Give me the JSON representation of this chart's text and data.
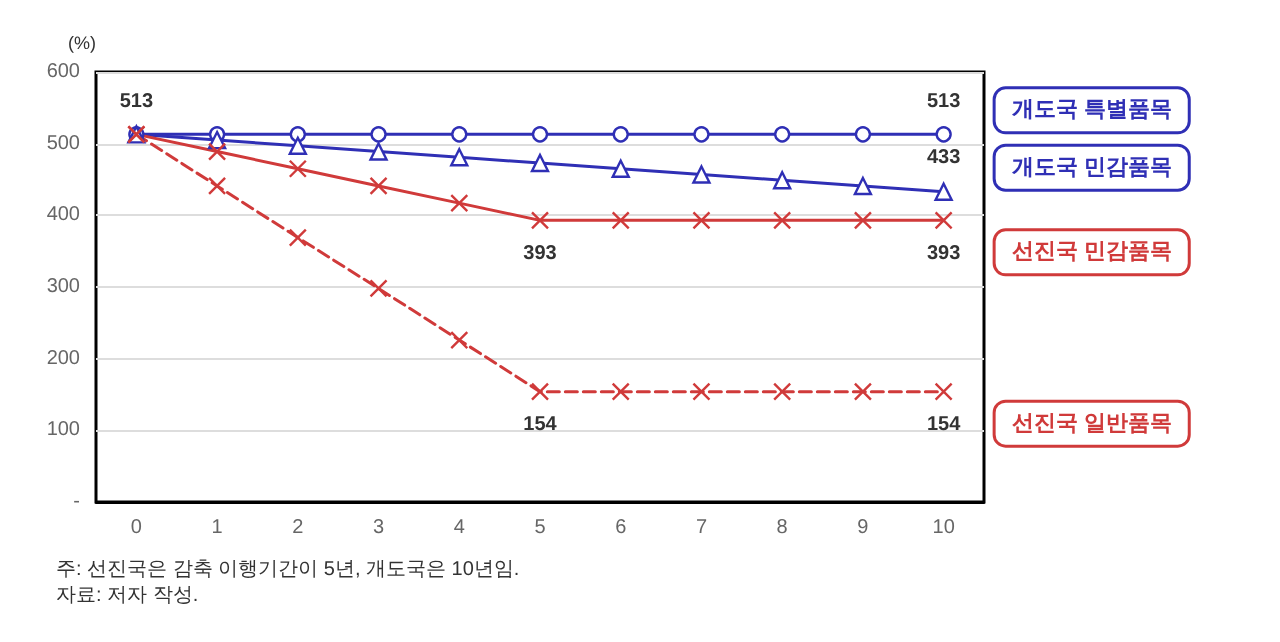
{
  "chart_data": {
    "type": "line",
    "ylabel": "(%)",
    "categories": [
      "0",
      "1",
      "2",
      "3",
      "4",
      "5",
      "6",
      "7",
      "8",
      "9",
      "10"
    ],
    "ylim": [
      0,
      600
    ],
    "yticks": [
      {
        "value": 0,
        "label": "-"
      },
      100,
      200,
      300,
      400,
      500,
      600
    ],
    "grid": "y",
    "legend": false,
    "series": [
      {
        "name": "개도국 특별품목",
        "color": "#2f2fb5",
        "marker": "circle",
        "line_style": "solid",
        "values": [
          513,
          513,
          513,
          513,
          513,
          513,
          513,
          513,
          513,
          513,
          513
        ],
        "value_labels": [
          "513",
          null,
          null,
          null,
          null,
          null,
          null,
          null,
          null,
          null,
          "513"
        ]
      },
      {
        "name": "개도국 민감품목",
        "color": "#2f2fb5",
        "marker": "triangle",
        "line_style": "solid",
        "values": [
          513,
          505,
          497,
          489,
          481,
          473,
          465,
          457,
          449,
          441,
          433
        ],
        "value_labels": [
          null,
          null,
          null,
          null,
          null,
          null,
          null,
          null,
          null,
          null,
          "433"
        ]
      },
      {
        "name": "선진국 민감품목",
        "color": "#d03a3a",
        "marker": "cross",
        "line_style": "solid",
        "values": [
          513,
          489,
          465,
          441,
          417,
          393,
          393,
          393,
          393,
          393,
          393
        ],
        "value_labels": [
          null,
          null,
          null,
          null,
          null,
          "393",
          null,
          null,
          null,
          null,
          "393"
        ]
      },
      {
        "name": "선진국 일반품목",
        "color": "#d03a3a",
        "marker": "cross",
        "line_style": "dashed",
        "values": [
          513,
          441,
          369,
          298,
          226,
          154,
          154,
          154,
          154,
          154,
          154
        ],
        "value_labels": [
          null,
          null,
          null,
          null,
          null,
          "154",
          null,
          null,
          null,
          null,
          "154"
        ]
      }
    ],
    "annotations": [
      "주: 선진국은 감축 이행기간이 5년, 개도국은 10년임.",
      "자료: 저자 작성."
    ]
  }
}
